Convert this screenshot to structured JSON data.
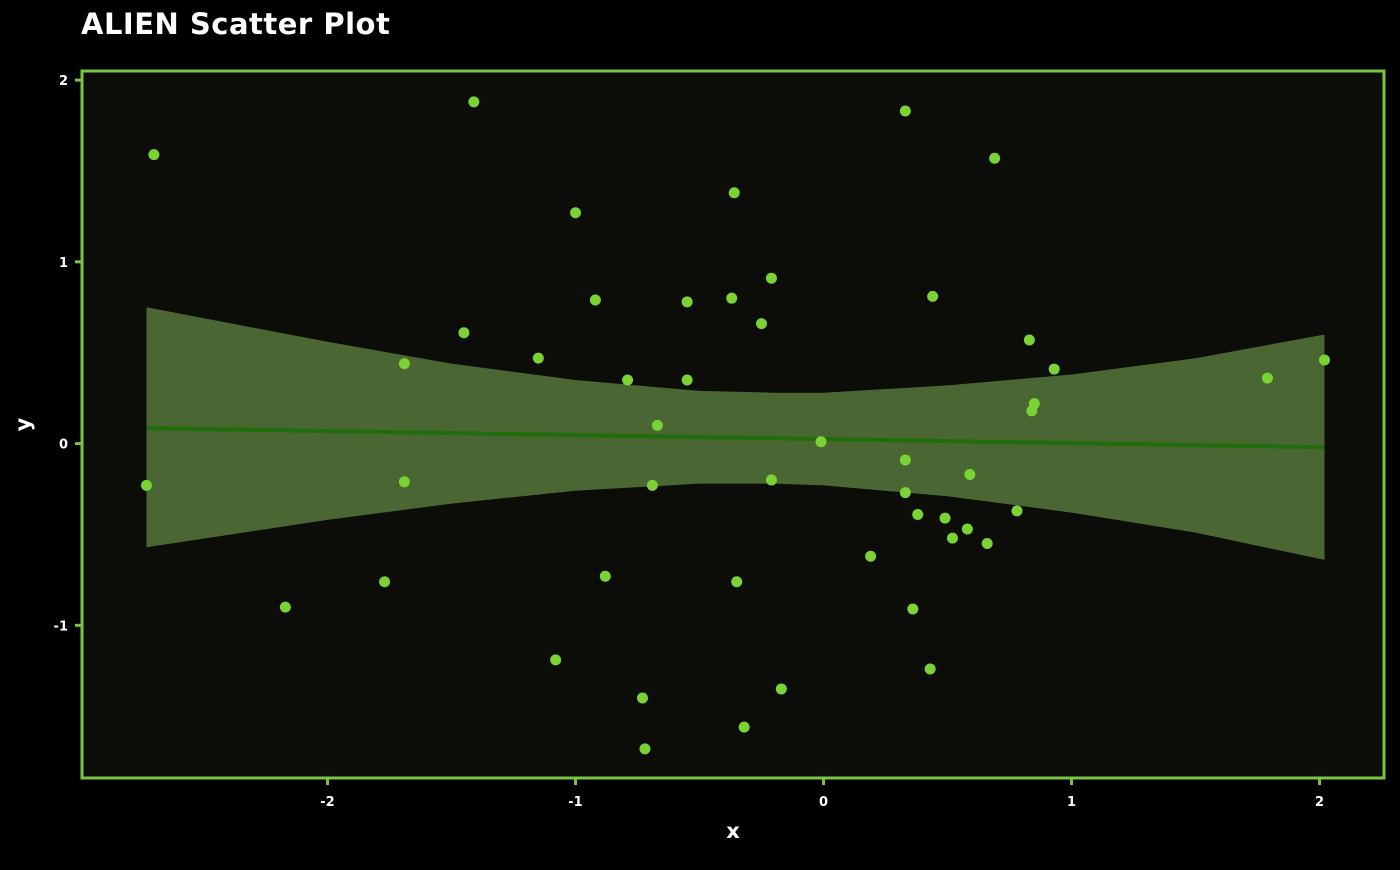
{
  "chart_data": {
    "type": "scatter",
    "title": "ALIEN Scatter Plot",
    "xlabel": "x",
    "ylabel": "y",
    "xlim": [
      -2.99,
      2.26
    ],
    "ylim": [
      -1.84,
      2.05
    ],
    "x_ticks": [
      -2,
      -1,
      0,
      1,
      2
    ],
    "y_ticks": [
      -1,
      0,
      1,
      2
    ],
    "x_tick_labels": [
      "-2",
      "-1",
      "0",
      "1",
      "2"
    ],
    "y_tick_labels": [
      "-1",
      "0",
      "1",
      "2"
    ],
    "grid": false,
    "colors": {
      "background": "#000000",
      "panel": "#0c0c08",
      "frame": "#7cc344",
      "points": "#7ad235",
      "fit_line": "#1f6e0b",
      "band": "#4a6632",
      "text": "#ffffff"
    },
    "points": [
      {
        "x": -2.73,
        "y": -0.23
      },
      {
        "x": -2.7,
        "y": 1.59
      },
      {
        "x": -2.17,
        "y": -0.9
      },
      {
        "x": -1.77,
        "y": -0.76
      },
      {
        "x": -1.69,
        "y": 0.44
      },
      {
        "x": -1.69,
        "y": -0.21
      },
      {
        "x": -1.45,
        "y": 0.61
      },
      {
        "x": -1.41,
        "y": 1.88
      },
      {
        "x": -1.15,
        "y": 0.47
      },
      {
        "x": -1.08,
        "y": -1.19
      },
      {
        "x": -1.0,
        "y": 1.27
      },
      {
        "x": -0.92,
        "y": 0.79
      },
      {
        "x": -0.88,
        "y": -0.73
      },
      {
        "x": -0.79,
        "y": 0.35
      },
      {
        "x": -0.73,
        "y": -1.4
      },
      {
        "x": -0.72,
        "y": -1.68
      },
      {
        "x": -0.69,
        "y": -0.23
      },
      {
        "x": -0.67,
        "y": 0.1
      },
      {
        "x": -0.55,
        "y": 0.78
      },
      {
        "x": -0.55,
        "y": 0.35
      },
      {
        "x": -0.37,
        "y": 0.8
      },
      {
        "x": -0.36,
        "y": 1.38
      },
      {
        "x": -0.35,
        "y": -0.76
      },
      {
        "x": -0.32,
        "y": -1.56
      },
      {
        "x": -0.25,
        "y": 0.66
      },
      {
        "x": -0.21,
        "y": 0.91
      },
      {
        "x": -0.21,
        "y": -0.2
      },
      {
        "x": -0.17,
        "y": -1.35
      },
      {
        "x": -0.01,
        "y": 0.01
      },
      {
        "x": 0.19,
        "y": -0.62
      },
      {
        "x": 0.33,
        "y": 1.83
      },
      {
        "x": 0.33,
        "y": -0.09
      },
      {
        "x": 0.33,
        "y": -0.27
      },
      {
        "x": 0.36,
        "y": -0.91
      },
      {
        "x": 0.38,
        "y": -0.39
      },
      {
        "x": 0.43,
        "y": -1.24
      },
      {
        "x": 0.44,
        "y": 0.81
      },
      {
        "x": 0.49,
        "y": -0.41
      },
      {
        "x": 0.52,
        "y": -0.52
      },
      {
        "x": 0.58,
        "y": -0.47
      },
      {
        "x": 0.59,
        "y": -0.17
      },
      {
        "x": 0.66,
        "y": -0.55
      },
      {
        "x": 0.69,
        "y": 1.57
      },
      {
        "x": 0.78,
        "y": -0.37
      },
      {
        "x": 0.83,
        "y": 0.57
      },
      {
        "x": 0.84,
        "y": 0.18
      },
      {
        "x": 0.85,
        "y": 0.22
      },
      {
        "x": 0.93,
        "y": 0.41
      },
      {
        "x": 1.79,
        "y": 0.36
      },
      {
        "x": 2.02,
        "y": 0.46
      }
    ],
    "fit_line": {
      "x": [
        -2.73,
        2.02
      ],
      "y": [
        0.085,
        -0.02
      ]
    },
    "confidence_band": [
      {
        "x": -2.73,
        "lower": -0.57,
        "upper": 0.75
      },
      {
        "x": -2.0,
        "lower": -0.42,
        "upper": 0.56
      },
      {
        "x": -1.5,
        "lower": -0.33,
        "upper": 0.44
      },
      {
        "x": -1.0,
        "lower": -0.26,
        "upper": 0.35
      },
      {
        "x": -0.5,
        "lower": -0.22,
        "upper": 0.29
      },
      {
        "x": -0.2,
        "lower": -0.22,
        "upper": 0.28
      },
      {
        "x": 0.0,
        "lower": -0.23,
        "upper": 0.28
      },
      {
        "x": 0.5,
        "lower": -0.29,
        "upper": 0.32
      },
      {
        "x": 1.0,
        "lower": -0.38,
        "upper": 0.38
      },
      {
        "x": 1.5,
        "lower": -0.49,
        "upper": 0.47
      },
      {
        "x": 2.02,
        "lower": -0.64,
        "upper": 0.6
      }
    ]
  }
}
